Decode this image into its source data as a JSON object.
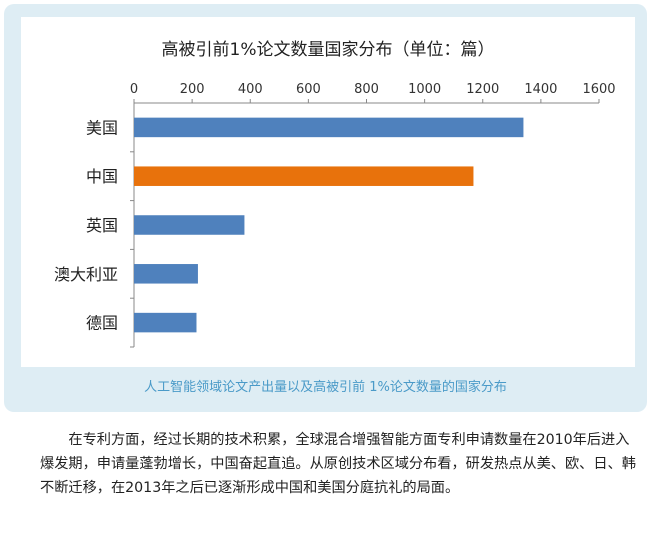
{
  "chart_data": {
    "type": "bar",
    "orientation": "horizontal",
    "title": "高被引前1%论文数量国家分布（单位：篇）",
    "categories": [
      "美国",
      "中国",
      "英国",
      "澳大利亚",
      "德国"
    ],
    "values": [
      1340,
      1168,
      380,
      220,
      215
    ],
    "bar_colors": [
      "#4f81bd",
      "#e8720c",
      "#4f81bd",
      "#4f81bd",
      "#4f81bd"
    ],
    "xlim": [
      0,
      1600
    ],
    "xticks": [
      "0",
      "200",
      "400",
      "600",
      "800",
      "1000",
      "1200",
      "1400",
      "1600"
    ],
    "xaxis_position": "top",
    "grid": false,
    "legend": "none"
  },
  "caption": "人工智能领域论文产出量以及高被引前 1%论文数量的国家分布",
  "article": {
    "paragraph": "在专利方面，经过长期的技术积累，全球混合增强智能方面专利申请数量在2010年后进入爆发期，申请量蓬勃增长，中国奋起直追。从原创技术区域分布看，研发热点从美、欧、日、韩不断迁移，在2013年之后已逐渐形成中国和美国分庭抗礼的局面。"
  }
}
